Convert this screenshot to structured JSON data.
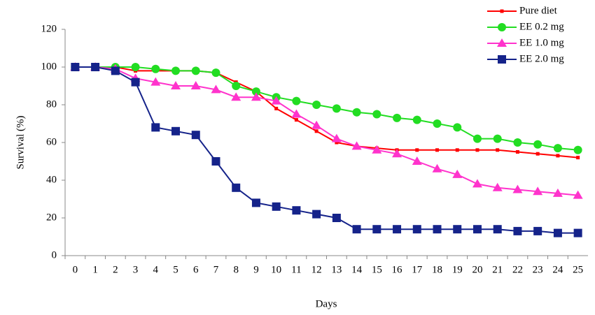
{
  "chart_data": {
    "type": "line",
    "x_label": "Days",
    "y_label": "Survival (%)",
    "categories": [
      "0",
      "1",
      "2",
      "3",
      "4",
      "5",
      "6",
      "7",
      "8",
      "9",
      "10",
      "11",
      "12",
      "13",
      "14",
      "15",
      "16",
      "17",
      "18",
      "19",
      "20",
      "21",
      "22",
      "23",
      "24",
      "25"
    ],
    "ylim": [
      0,
      120
    ],
    "yticks": [
      0,
      20,
      40,
      60,
      80,
      100,
      120
    ],
    "legend": "top-right",
    "series": [
      {
        "name": "Pure diet",
        "color": "#ff0000",
        "marker": "small-square",
        "values": [
          100,
          100,
          100,
          98,
          98,
          98,
          98,
          97,
          92,
          87,
          78,
          72,
          66,
          60,
          58,
          57,
          56,
          56,
          56,
          56,
          56,
          56,
          55,
          54,
          53,
          52
        ]
      },
      {
        "name": "EE 0.2 mg",
        "color": "#22dd22",
        "marker": "circle",
        "values": [
          100,
          100,
          100,
          100,
          99,
          98,
          98,
          97,
          90,
          87,
          84,
          82,
          80,
          78,
          76,
          75,
          73,
          72,
          70,
          68,
          62,
          62,
          60,
          59,
          57,
          56
        ]
      },
      {
        "name": "EE 1.0 mg",
        "color": "#ff33cc",
        "marker": "triangle",
        "values": [
          100,
          100,
          99,
          94,
          92,
          90,
          90,
          88,
          84,
          84,
          82,
          75,
          69,
          62,
          58,
          56,
          54,
          50,
          46,
          43,
          38,
          36,
          35,
          34,
          33,
          32
        ]
      },
      {
        "name": "EE 2.0 mg",
        "color": "#15238a",
        "marker": "square",
        "values": [
          100,
          100,
          98,
          92,
          68,
          66,
          64,
          50,
          36,
          28,
          26,
          24,
          22,
          20,
          14,
          14,
          14,
          14,
          14,
          14,
          14,
          14,
          13,
          13,
          12,
          12
        ]
      }
    ]
  }
}
